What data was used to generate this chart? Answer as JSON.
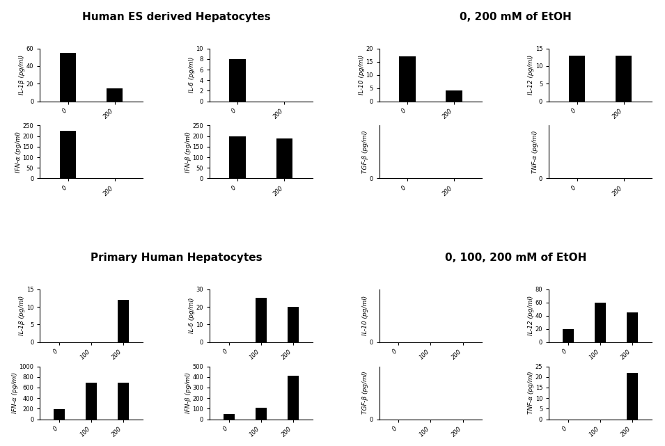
{
  "title1": "Human ES derived Hepatocytes",
  "subtitle1": "0, 200 mM of EtOH",
  "title2": "Primary Human Hepatocytes",
  "subtitle2": "0, 100, 200 mM of EtOH",
  "xticks_2bar": [
    "0",
    "200"
  ],
  "xticks_3bar": [
    "0",
    "100",
    "200"
  ],
  "section1": {
    "row1_left": [
      {
        "ylabel": "IL-1β (pg/ml)",
        "values": [
          55,
          15
        ],
        "ylim": [
          0,
          60
        ],
        "yticks": [
          0,
          20,
          40,
          60
        ]
      },
      {
        "ylabel": "IL-6 (pg/ml)",
        "values": [
          8.0,
          0.0
        ],
        "ylim": [
          0,
          10
        ],
        "yticks": [
          0,
          2,
          4,
          6,
          8,
          10
        ]
      }
    ],
    "row1_right": [
      {
        "ylabel": "IL-10 (pg/ml)",
        "values": [
          17,
          4
        ],
        "ylim": [
          0,
          20
        ],
        "yticks": [
          0,
          5,
          10,
          15,
          20
        ]
      },
      {
        "ylabel": "IL-12 (pg/ml)",
        "values": [
          13,
          13
        ],
        "ylim": [
          0,
          15
        ],
        "yticks": [
          0,
          5,
          10,
          15
        ]
      }
    ],
    "row2_left": [
      {
        "ylabel": "IFN-α (pg/ml)",
        "values": [
          225,
          0
        ],
        "ylim": [
          0,
          250
        ],
        "yticks": [
          0,
          50,
          100,
          150,
          200,
          250
        ]
      },
      {
        "ylabel": "IFN-β (pg/ml)",
        "values": [
          200,
          190
        ],
        "ylim": [
          0,
          250
        ],
        "yticks": [
          0,
          50,
          100,
          150,
          200,
          250
        ]
      }
    ],
    "row2_right": [
      {
        "ylabel": "TGF-β (pg/ml)",
        "values": [
          0,
          0
        ],
        "ylim": [
          0,
          1
        ],
        "yticks": [
          0
        ]
      },
      {
        "ylabel": "TNF-α (pg/ml)",
        "values": [
          0,
          0
        ],
        "ylim": [
          0,
          1
        ],
        "yticks": [
          0
        ]
      }
    ]
  },
  "section2": {
    "row1_left": [
      {
        "ylabel": "IL-1β (pg/ml)",
        "values": [
          0,
          0,
          12
        ],
        "ylim": [
          0,
          15
        ],
        "yticks": [
          0,
          5,
          10,
          15
        ]
      },
      {
        "ylabel": "IL-6 (pg/ml)",
        "values": [
          0,
          25,
          20
        ],
        "ylim": [
          0,
          30
        ],
        "yticks": [
          0,
          10,
          20,
          30
        ]
      }
    ],
    "row1_right": [
      {
        "ylabel": "IL-10 (pg/ml)",
        "values": [
          0,
          0,
          0
        ],
        "ylim": [
          0,
          1
        ],
        "yticks": [
          0
        ]
      },
      {
        "ylabel": "IL-12 (pg/ml)",
        "values": [
          20,
          60,
          45
        ],
        "ylim": [
          0,
          80
        ],
        "yticks": [
          0,
          20,
          40,
          60,
          80
        ]
      }
    ],
    "row2_left": [
      {
        "ylabel": "IFN-α (pg/ml)",
        "values": [
          190,
          690,
          690
        ],
        "ylim": [
          0,
          1000
        ],
        "yticks": [
          0,
          200,
          400,
          600,
          800,
          1000
        ]
      },
      {
        "ylabel": "IFN-β (pg/ml)",
        "values": [
          50,
          110,
          415
        ],
        "ylim": [
          0,
          500
        ],
        "yticks": [
          0,
          100,
          200,
          300,
          400,
          500
        ]
      }
    ],
    "row2_right": [
      {
        "ylabel": "TGF-β (pg/ml)",
        "values": [
          0,
          0,
          0
        ],
        "ylim": [
          0,
          1
        ],
        "yticks": [
          0
        ]
      },
      {
        "ylabel": "TNF-α (pg/ml)",
        "values": [
          0,
          0,
          22
        ],
        "ylim": [
          0,
          25
        ],
        "yticks": [
          0,
          5,
          10,
          15,
          20,
          25
        ]
      }
    ]
  },
  "bar_color": "#000000",
  "bar_width": 0.35,
  "title_fontsize": 11,
  "label_fontsize": 6.5,
  "tick_fontsize": 6
}
